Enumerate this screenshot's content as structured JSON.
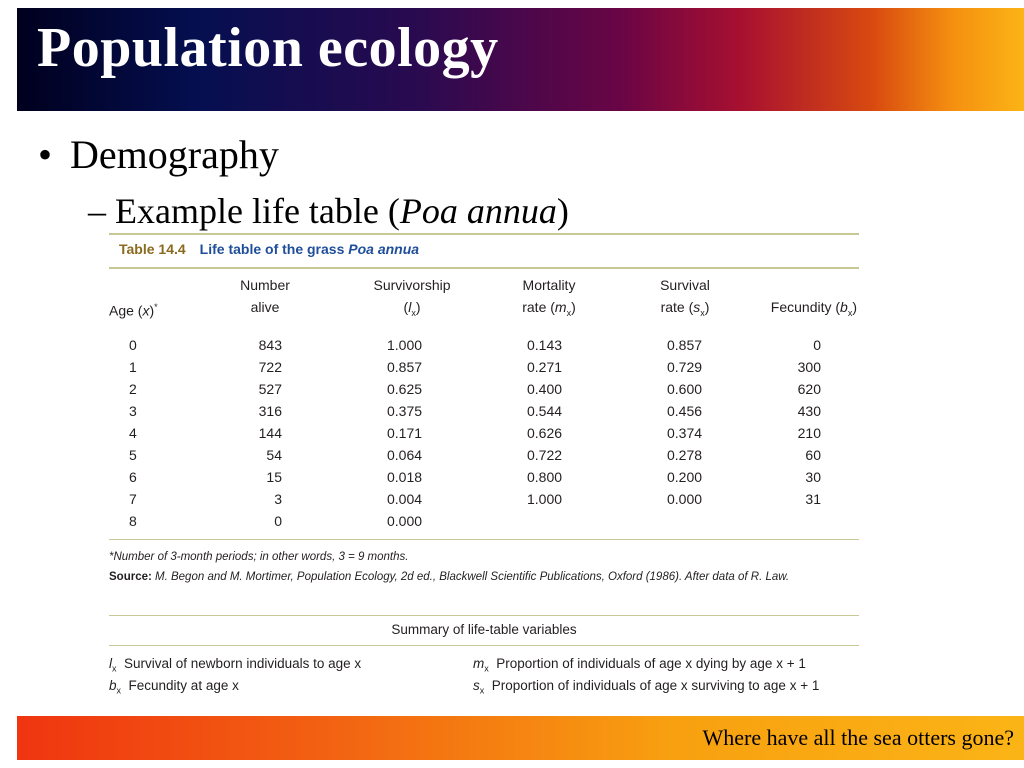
{
  "slide": {
    "title": "Population ecology",
    "bullet": "Demography",
    "subbullet_prefix": "– Example life table (",
    "subbullet_italic": "Poa annua",
    "subbullet_suffix": ")",
    "footer": "Where have all the sea otters gone?"
  },
  "table": {
    "number": "Table 14.4",
    "caption_text": "Life table of the grass ",
    "caption_italic": "Poa annua",
    "headers": {
      "age": "Age (x)*",
      "number_alive": [
        "Number",
        "alive"
      ],
      "survivorship": [
        "Survivorship",
        "(lx)"
      ],
      "mortality": [
        "Mortality",
        "rate (mx)"
      ],
      "survival": [
        "Survival",
        "rate (sx)"
      ],
      "fecundity": "Fecundity (bx)"
    },
    "rows": [
      {
        "age": "0",
        "alive": "843",
        "lx": "1.000",
        "mx": "0.143",
        "sx": "0.857",
        "bx": "0"
      },
      {
        "age": "1",
        "alive": "722",
        "lx": "0.857",
        "mx": "0.271",
        "sx": "0.729",
        "bx": "300"
      },
      {
        "age": "2",
        "alive": "527",
        "lx": "0.625",
        "mx": "0.400",
        "sx": "0.600",
        "bx": "620"
      },
      {
        "age": "3",
        "alive": "316",
        "lx": "0.375",
        "mx": "0.544",
        "sx": "0.456",
        "bx": "430"
      },
      {
        "age": "4",
        "alive": "144",
        "lx": "0.171",
        "mx": "0.626",
        "sx": "0.374",
        "bx": "210"
      },
      {
        "age": "5",
        "alive": "54",
        "lx": "0.064",
        "mx": "0.722",
        "sx": "0.278",
        "bx": "60"
      },
      {
        "age": "6",
        "alive": "15",
        "lx": "0.018",
        "mx": "0.800",
        "sx": "0.200",
        "bx": "30"
      },
      {
        "age": "7",
        "alive": "3",
        "lx": "0.004",
        "mx": "1.000",
        "sx": "0.000",
        "bx": "31"
      },
      {
        "age": "8",
        "alive": "0",
        "lx": "0.000",
        "mx": "",
        "sx": "",
        "bx": ""
      }
    ],
    "footnote": "*Number of 3-month periods; in other words, 3 = 9 months.",
    "source_label": "Source:",
    "source_text": " M. Begon and M. Mortimer, Population Ecology, 2d ed., Blackwell Scientific Publications, Oxford (1986). After data of R. Law.",
    "summary_title": "Summary of life-table variables",
    "summary": [
      {
        "sym": "l",
        "sub": "x",
        "desc": "Survival of newborn individuals to age x"
      },
      {
        "sym": "b",
        "sub": "x",
        "desc": "Fecundity at age x"
      },
      {
        "sym": "m",
        "sub": "x",
        "desc": "Proportion of individuals of age x dying by age x + 1"
      },
      {
        "sym": "s",
        "sub": "x",
        "desc": "Proportion of individuals of age x surviving to age x + 1"
      }
    ]
  }
}
